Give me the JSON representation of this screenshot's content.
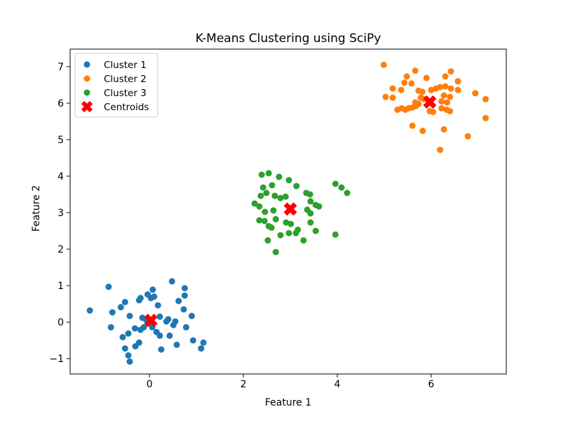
{
  "chart_data": {
    "type": "scatter",
    "title": "K-Means Clustering using SciPy",
    "xlabel": "Feature 1",
    "ylabel": "Feature 2",
    "xlim": [
      -1.69,
      7.6
    ],
    "ylim": [
      -1.42,
      7.48
    ],
    "xticks": [
      0,
      2,
      4,
      6
    ],
    "yticks": [
      -1,
      0,
      1,
      2,
      3,
      4,
      5,
      6,
      7
    ],
    "grid": false,
    "legend": {
      "position": "upper left",
      "labels": [
        "Cluster 1",
        "Cluster 2",
        "Cluster 3",
        "Centroids"
      ]
    },
    "colors": {
      "cluster1": "#1f77b4",
      "cluster2": "#ff7f0e",
      "cluster3": "#2ca02c",
      "centroids": "#ff0000",
      "axes": "#000000",
      "legend_border": "#cccccc"
    },
    "series": [
      {
        "name": "Cluster 1",
        "color": "#1f77b4",
        "marker": "circle",
        "points": [
          [
            -1.27,
            0.32
          ],
          [
            -0.87,
            0.97
          ],
          [
            -0.79,
            0.27
          ],
          [
            -0.82,
            -0.14
          ],
          [
            -0.61,
            0.41
          ],
          [
            -0.52,
            0.55
          ],
          [
            -0.57,
            -0.41
          ],
          [
            -0.45,
            -0.31
          ],
          [
            -0.52,
            -0.72
          ],
          [
            -0.45,
            -0.91
          ],
          [
            -0.42,
            -1.08
          ],
          [
            -0.42,
            0.17
          ],
          [
            -0.31,
            -0.17
          ],
          [
            -0.3,
            -0.66
          ],
          [
            -0.22,
            0.6
          ],
          [
            -0.19,
            0.66
          ],
          [
            -0.22,
            -0.56
          ],
          [
            -0.19,
            -0.21
          ],
          [
            -0.12,
            -0.14
          ],
          [
            -0.15,
            0.12
          ],
          [
            -0.07,
            0.06
          ],
          [
            -0.04,
            0.76
          ],
          [
            0.03,
            0.66
          ],
          [
            0.0,
            -0.04
          ],
          [
            0.06,
            -0.14
          ],
          [
            0.07,
            0.89
          ],
          [
            0.1,
            0.7
          ],
          [
            0.15,
            -0.27
          ],
          [
            0.22,
            -0.37
          ],
          [
            0.18,
            0.46
          ],
          [
            0.22,
            0.15
          ],
          [
            0.25,
            -0.75
          ],
          [
            0.36,
            0.02
          ],
          [
            0.4,
            0.08
          ],
          [
            0.43,
            -0.37
          ],
          [
            0.48,
            1.12
          ],
          [
            0.51,
            -0.08
          ],
          [
            0.55,
            0.02
          ],
          [
            0.58,
            -0.62
          ],
          [
            0.62,
            0.58
          ],
          [
            0.73,
            0.35
          ],
          [
            0.75,
            0.73
          ],
          [
            0.75,
            0.93
          ],
          [
            0.78,
            -0.14
          ],
          [
            0.9,
            0.17
          ],
          [
            0.93,
            -0.5
          ],
          [
            1.1,
            -0.72
          ],
          [
            1.15,
            -0.56
          ]
        ]
      },
      {
        "name": "Cluster 2",
        "color": "#ff7f0e",
        "marker": "circle",
        "points": [
          [
            4.99,
            7.05
          ],
          [
            5.66,
            6.89
          ],
          [
            5.48,
            6.73
          ],
          [
            5.9,
            6.69
          ],
          [
            6.3,
            6.73
          ],
          [
            6.42,
            6.87
          ],
          [
            5.43,
            6.56
          ],
          [
            5.58,
            6.54
          ],
          [
            6.57,
            6.6
          ],
          [
            5.18,
            6.4
          ],
          [
            5.36,
            6.36
          ],
          [
            5.73,
            6.34
          ],
          [
            5.81,
            6.31
          ],
          [
            6.0,
            6.36
          ],
          [
            6.1,
            6.4
          ],
          [
            6.19,
            6.44
          ],
          [
            6.3,
            6.46
          ],
          [
            6.42,
            6.4
          ],
          [
            6.57,
            6.36
          ],
          [
            5.03,
            6.17
          ],
          [
            5.18,
            6.15
          ],
          [
            5.78,
            6.15
          ],
          [
            5.85,
            6.11
          ],
          [
            6.27,
            6.21
          ],
          [
            6.4,
            6.17
          ],
          [
            6.94,
            6.27
          ],
          [
            5.66,
            6.02
          ],
          [
            5.73,
            5.98
          ],
          [
            6.22,
            6.05
          ],
          [
            6.34,
            6.02
          ],
          [
            7.16,
            6.11
          ],
          [
            5.28,
            5.82
          ],
          [
            5.37,
            5.86
          ],
          [
            5.45,
            5.82
          ],
          [
            5.52,
            5.86
          ],
          [
            5.6,
            5.88
          ],
          [
            5.67,
            5.92
          ],
          [
            5.97,
            5.78
          ],
          [
            6.04,
            5.76
          ],
          [
            6.22,
            5.86
          ],
          [
            6.33,
            5.82
          ],
          [
            6.4,
            5.78
          ],
          [
            7.16,
            5.59
          ],
          [
            5.6,
            5.38
          ],
          [
            5.82,
            5.24
          ],
          [
            6.27,
            5.28
          ],
          [
            6.78,
            5.09
          ],
          [
            6.19,
            4.72
          ]
        ]
      },
      {
        "name": "Cluster 3",
        "color": "#2ca02c",
        "marker": "circle",
        "points": [
          [
            2.39,
            4.04
          ],
          [
            2.54,
            4.08
          ],
          [
            2.76,
            3.98
          ],
          [
            2.97,
            3.89
          ],
          [
            2.42,
            3.69
          ],
          [
            2.61,
            3.75
          ],
          [
            3.13,
            3.73
          ],
          [
            3.96,
            3.79
          ],
          [
            4.09,
            3.69
          ],
          [
            4.21,
            3.54
          ],
          [
            3.34,
            3.54
          ],
          [
            3.42,
            3.5
          ],
          [
            2.37,
            3.46
          ],
          [
            2.49,
            3.54
          ],
          [
            2.67,
            3.46
          ],
          [
            2.24,
            3.25
          ],
          [
            2.34,
            3.17
          ],
          [
            2.79,
            3.4
          ],
          [
            2.9,
            3.44
          ],
          [
            3.43,
            3.31
          ],
          [
            3.54,
            3.21
          ],
          [
            3.61,
            3.17
          ],
          [
            2.46,
            3.02
          ],
          [
            2.64,
            3.06
          ],
          [
            3.36,
            3.08
          ],
          [
            3.43,
            2.98
          ],
          [
            2.34,
            2.79
          ],
          [
            2.45,
            2.77
          ],
          [
            2.69,
            2.82
          ],
          [
            2.91,
            2.73
          ],
          [
            3.01,
            2.69
          ],
          [
            2.54,
            2.63
          ],
          [
            2.6,
            2.59
          ],
          [
            3.16,
            2.53
          ],
          [
            3.43,
            2.73
          ],
          [
            3.54,
            2.5
          ],
          [
            2.97,
            2.44
          ],
          [
            3.12,
            2.44
          ],
          [
            2.79,
            2.38
          ],
          [
            3.96,
            2.4
          ],
          [
            2.52,
            2.24
          ],
          [
            3.28,
            2.24
          ],
          [
            2.69,
            1.92
          ]
        ]
      },
      {
        "name": "Centroids",
        "color": "#ff0000",
        "marker": "X",
        "points": [
          [
            0.03,
            0.05
          ],
          [
            3.0,
            3.1
          ],
          [
            5.97,
            6.03
          ]
        ]
      }
    ]
  }
}
